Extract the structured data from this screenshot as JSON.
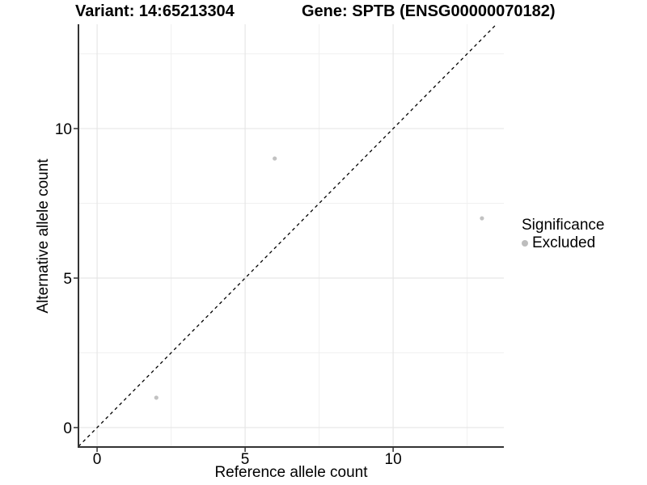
{
  "figure": {
    "titles": {
      "variant": "Variant: 14:65213304",
      "gene": "Gene: SPTB (ENSG00000070182)"
    }
  },
  "chart_data": {
    "type": "scatter",
    "title": "Variant: 14:65213304 — Gene: SPTB (ENSG00000070182)",
    "xlabel": "Reference allele count",
    "ylabel": "Alternative allele count",
    "xlim": [
      -0.63,
      13.74
    ],
    "ylim": [
      -0.65,
      13.49
    ],
    "x_ticks": [
      0,
      5,
      10
    ],
    "y_ticks": [
      0,
      5,
      10
    ],
    "x_minor_ticks": [
      2.5,
      7.5,
      12.5
    ],
    "y_minor_ticks": [
      2.5,
      7.5,
      12.5
    ],
    "grid": true,
    "series": [
      {
        "name": "Excluded",
        "color": "#c2c2c2",
        "points": [
          {
            "x": 2,
            "y": 1
          },
          {
            "x": 6,
            "y": 9
          },
          {
            "x": 13,
            "y": 7
          }
        ]
      }
    ],
    "reference_line": {
      "type": "identity",
      "style": "dashed",
      "color": "#000000"
    },
    "legend": {
      "title": "Significance",
      "position": "right",
      "items": [
        {
          "label": "Excluded",
          "color": "#bdbdbd"
        }
      ]
    },
    "colors": {
      "background": "#ffffff",
      "grid_major": "#e6e6e6",
      "grid_minor": "#f0f0f0",
      "axis_line": "#333333",
      "tick_mark": "#333333",
      "point": "#c2c2c2",
      "text": "#000000"
    }
  }
}
